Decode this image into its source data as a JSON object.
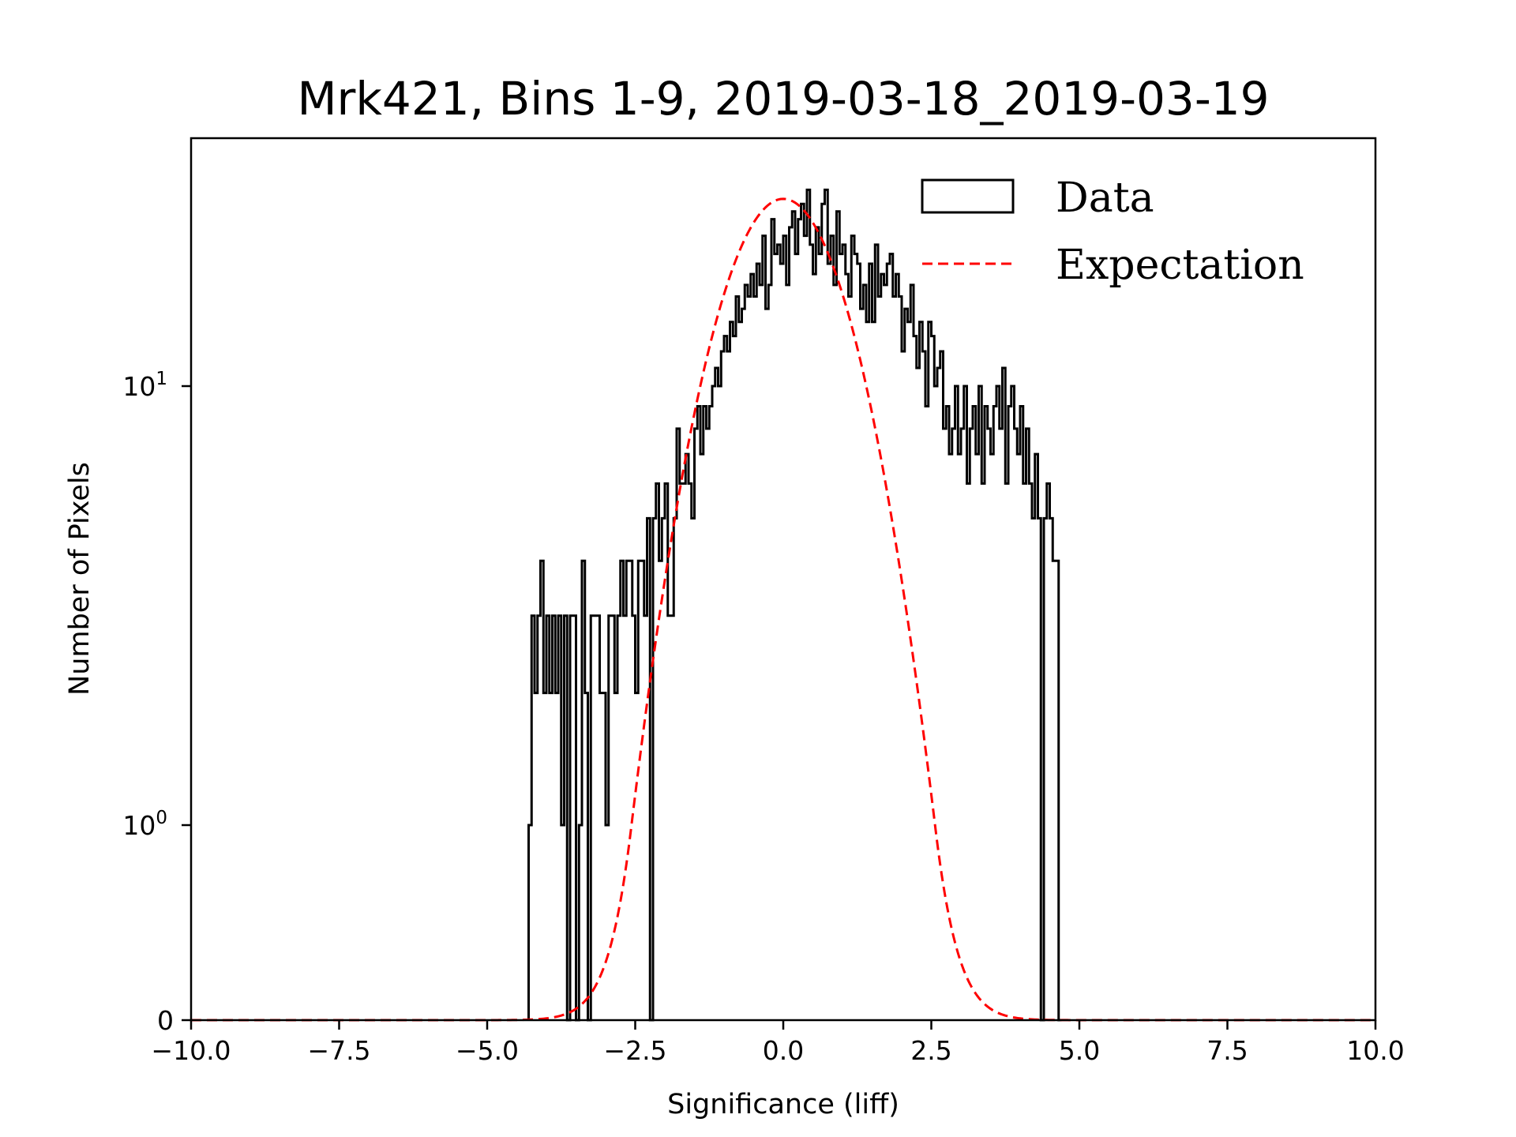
{
  "chart_data": {
    "type": "bar",
    "title": "Mrk421, Bins 1-9, 2019-03-18_2019-03-19",
    "xlabel": "Significance (liff)",
    "ylabel": "Number of Pixels",
    "xlim": [
      -10.0,
      10.0
    ],
    "yscale": "symlog",
    "ylim": [
      0,
      36
    ],
    "grid": false,
    "x_ticks": [
      "−10.0",
      "−7.5",
      "−5.0",
      "−2.5",
      "0.0",
      "2.5",
      "5.0",
      "7.5",
      "10.0"
    ],
    "x_tick_values": [
      -10.0,
      -7.5,
      -5.0,
      -2.5,
      0.0,
      2.5,
      5.0,
      7.5,
      10.0
    ],
    "y_ticks": [
      {
        "value": 0,
        "base": "0",
        "exp": ""
      },
      {
        "value": 1,
        "base": "10",
        "exp": "0"
      },
      {
        "value": 10,
        "base": "10",
        "exp": "1"
      }
    ],
    "legend": {
      "placement": "top-right",
      "entries": [
        {
          "label": "Data",
          "style": "step-histogram",
          "color": "#000000"
        },
        {
          "label": "Expectation",
          "style": "dashed-line",
          "color": "#ff0000"
        }
      ]
    },
    "series": [
      {
        "name": "Data",
        "type": "histogram",
        "bin_width": 0.05,
        "bin_start": -4.3,
        "values": [
          1,
          3,
          2,
          3,
          4,
          2,
          3,
          2,
          3,
          2,
          3,
          1,
          3,
          0,
          3,
          3,
          0,
          1,
          4,
          2,
          0,
          3,
          3,
          3,
          2,
          2,
          1,
          3,
          3,
          2,
          3,
          4,
          3,
          4,
          4,
          3,
          2,
          4,
          4,
          3,
          5,
          0,
          5,
          6,
          4,
          5,
          6,
          3,
          3,
          5,
          8,
          6,
          6,
          7,
          6,
          5,
          8,
          9,
          7,
          9,
          8,
          9,
          10,
          11,
          10,
          12,
          13,
          12,
          14,
          13,
          16,
          14,
          15,
          17,
          16,
          18,
          16,
          19,
          17,
          22,
          15,
          17,
          24,
          20,
          21,
          19,
          22,
          17,
          23,
          25,
          20,
          24,
          26,
          22,
          28,
          21,
          18,
          23,
          20,
          26,
          28,
          19,
          22,
          17,
          25,
          20,
          21,
          18,
          16,
          22,
          20,
          19,
          15,
          17,
          14,
          19,
          14,
          21,
          16,
          18,
          17,
          19,
          20,
          16,
          18,
          16,
          12,
          15,
          14,
          17,
          13,
          11,
          14,
          12,
          9,
          14,
          13,
          10,
          11,
          12,
          8,
          9,
          7,
          8,
          10,
          7,
          8,
          10,
          6,
          8,
          9,
          7,
          10,
          6,
          9,
          8,
          7,
          9,
          10,
          8,
          11,
          6,
          9,
          10,
          8,
          7,
          9,
          6,
          8,
          6,
          5,
          7,
          5,
          0,
          5,
          6,
          5,
          4,
          4,
          0
        ]
      },
      {
        "name": "Expectation",
        "type": "line",
        "model": "gaussian",
        "amplitude": 26.7,
        "mean": 0.0,
        "sigma": 1.0
      }
    ],
    "colors": {
      "data": "#000000",
      "expectation": "#ff0000"
    }
  }
}
